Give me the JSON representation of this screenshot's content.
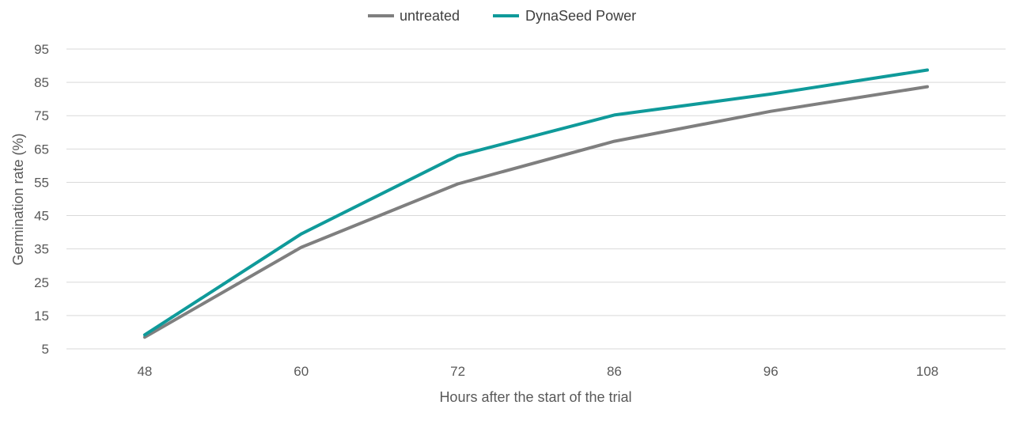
{
  "chart_data": {
    "type": "line",
    "categories": [
      "48",
      "60",
      "72",
      "86",
      "96",
      "108"
    ],
    "series": [
      {
        "name": "untreated",
        "color": "#7f7f7f",
        "values": [
          8.5,
          35.5,
          54.5,
          67.3,
          76.3,
          83.7
        ]
      },
      {
        "name": "DynaSeed Power",
        "color": "#0f9a9a",
        "values": [
          9.2,
          39.5,
          63.0,
          75.2,
          81.5,
          88.7
        ]
      }
    ],
    "xlabel": "Hours after the start of the trial",
    "ylabel": "Germination rate (%)",
    "ylim": [
      5,
      95
    ],
    "yticks": [
      "5",
      "15",
      "25",
      "35",
      "45",
      "55",
      "65",
      "75",
      "85",
      "95"
    ],
    "grid": true,
    "legend_position": "top-center"
  }
}
